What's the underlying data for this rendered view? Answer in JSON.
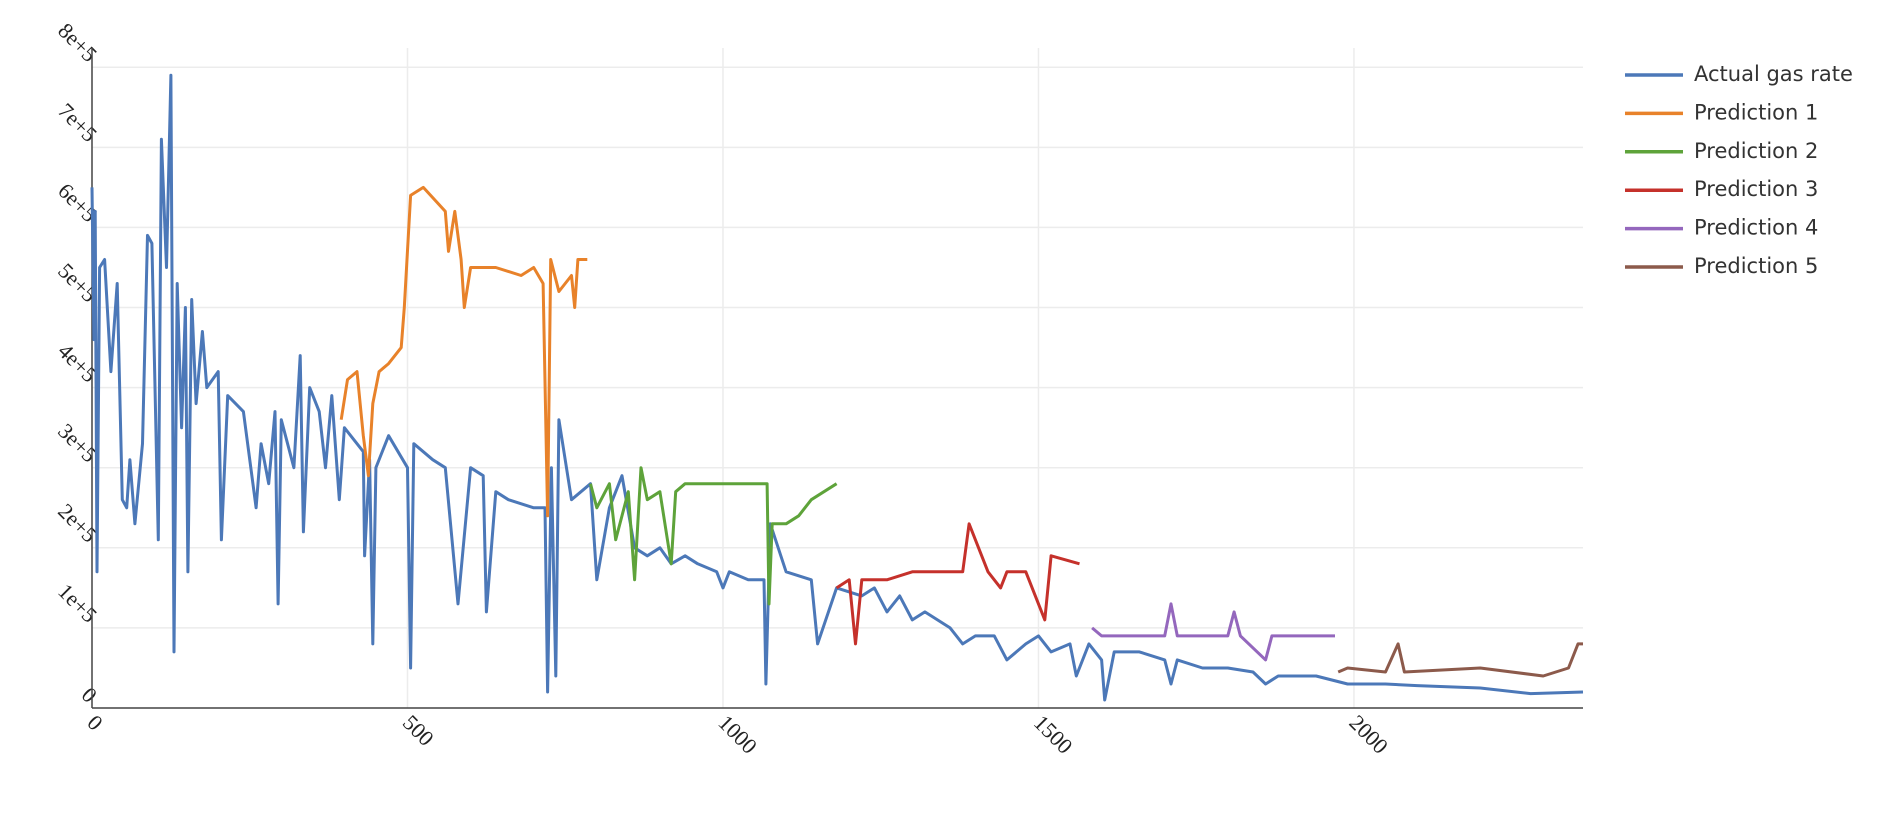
{
  "chart_data": {
    "type": "line",
    "xlim": [
      0,
      2363
    ],
    "ylim": [
      0,
      824000
    ],
    "xticks": [
      0,
      500,
      1000,
      1500,
      2000
    ],
    "yticks": [
      0,
      {
        "value": 100000,
        "label": "1e+5"
      },
      {
        "value": 200000,
        "label": "2e+5"
      },
      {
        "value": 300000,
        "label": "3e+5"
      },
      {
        "value": 400000,
        "label": "4e+5"
      },
      {
        "value": 500000,
        "label": "5e+5"
      },
      {
        "value": 600000,
        "label": "6e+5"
      },
      {
        "value": 700000,
        "label": "7e+5"
      },
      {
        "value": 800000,
        "label": "8e+5"
      }
    ],
    "grid": true,
    "legend": "right",
    "series": [
      {
        "name": "Actual gas rate",
        "color": "#4c78b8",
        "x": [
          0,
          3,
          5,
          8,
          12,
          20,
          30,
          40,
          48,
          55,
          60,
          68,
          80,
          88,
          95,
          105,
          110,
          118,
          125,
          130,
          135,
          142,
          148,
          152,
          158,
          165,
          175,
          182,
          200,
          205,
          215,
          240,
          260,
          268,
          280,
          290,
          295,
          300,
          320,
          330,
          335,
          345,
          360,
          370,
          380,
          392,
          400,
          430,
          432,
          440,
          445,
          450,
          470,
          500,
          505,
          510,
          540,
          560,
          580,
          600,
          620,
          625,
          640,
          660,
          700,
          718,
          722,
          728,
          735,
          740,
          760,
          790,
          800,
          820,
          840,
          860,
          880,
          900,
          918,
          940,
          960,
          990,
          1000,
          1010,
          1040,
          1065,
          1068,
          1075,
          1100,
          1140,
          1150,
          1180,
          1220,
          1240,
          1260,
          1280,
          1300,
          1320,
          1360,
          1380,
          1400,
          1430,
          1450,
          1480,
          1500,
          1520,
          1550,
          1560,
          1580,
          1600,
          1605,
          1620,
          1660,
          1700,
          1710,
          1720,
          1760,
          1800,
          1840,
          1860,
          1880,
          1940,
          1990,
          2050,
          2100,
          2200,
          2280,
          2363
        ],
        "values": [
          650000,
          460000,
          620000,
          170000,
          550000,
          560000,
          420000,
          530000,
          260000,
          250000,
          310000,
          230000,
          330000,
          590000,
          580000,
          210000,
          710000,
          550000,
          790000,
          70000,
          530000,
          350000,
          500000,
          170000,
          510000,
          380000,
          470000,
          400000,
          420000,
          210000,
          390000,
          370000,
          250000,
          330000,
          280000,
          370000,
          130000,
          360000,
          300000,
          440000,
          220000,
          400000,
          370000,
          300000,
          390000,
          260000,
          350000,
          320000,
          190000,
          310000,
          80000,
          300000,
          340000,
          300000,
          50000,
          330000,
          310000,
          300000,
          130000,
          300000,
          290000,
          120000,
          270000,
          260000,
          250000,
          250000,
          20000,
          300000,
          40000,
          360000,
          260000,
          280000,
          160000,
          250000,
          290000,
          200000,
          190000,
          200000,
          180000,
          190000,
          180000,
          170000,
          150000,
          170000,
          160000,
          160000,
          30000,
          230000,
          170000,
          160000,
          80000,
          150000,
          140000,
          150000,
          120000,
          140000,
          110000,
          120000,
          100000,
          80000,
          90000,
          90000,
          60000,
          80000,
          90000,
          70000,
          80000,
          40000,
          80000,
          60000,
          10000,
          70000,
          70000,
          60000,
          30000,
          60000,
          50000,
          50000,
          45000,
          30000,
          40000,
          40000,
          30000,
          30000,
          28000,
          25000,
          18000,
          20000
        ]
      },
      {
        "name": "Prediction 1",
        "color": "#e8822a",
        "x": [
          395,
          405,
          420,
          430,
          438,
          445,
          455,
          470,
          490,
          495,
          505,
          525,
          560,
          565,
          575,
          585,
          590,
          600,
          640,
          680,
          700,
          715,
          722,
          727,
          740,
          760,
          765,
          770,
          785
        ],
        "values": [
          360000,
          410000,
          420000,
          340000,
          290000,
          380000,
          420000,
          430000,
          450000,
          500000,
          640000,
          650000,
          620000,
          570000,
          620000,
          560000,
          500000,
          550000,
          550000,
          540000,
          550000,
          530000,
          240000,
          560000,
          520000,
          540000,
          500000,
          560000,
          560000
        ]
      },
      {
        "name": "Prediction 2",
        "color": "#5ea33a",
        "x": [
          790,
          800,
          820,
          830,
          850,
          860,
          870,
          880,
          900,
          918,
          925,
          940,
          1000,
          1070,
          1073,
          1078,
          1100,
          1120,
          1140,
          1180
        ],
        "values": [
          280000,
          250000,
          280000,
          210000,
          270000,
          160000,
          300000,
          260000,
          270000,
          180000,
          270000,
          280000,
          280000,
          280000,
          130000,
          230000,
          230000,
          240000,
          260000,
          280000
        ]
      },
      {
        "name": "Prediction 3",
        "color": "#c5312b",
        "x": [
          1180,
          1200,
          1210,
          1220,
          1260,
          1300,
          1350,
          1380,
          1390,
          1420,
          1440,
          1450,
          1480,
          1510,
          1520,
          1565
        ],
        "values": [
          150000,
          160000,
          80000,
          160000,
          160000,
          170000,
          170000,
          170000,
          230000,
          170000,
          150000,
          170000,
          170000,
          110000,
          190000,
          180000
        ]
      },
      {
        "name": "Prediction 4",
        "color": "#9467bd",
        "x": [
          1585,
          1600,
          1650,
          1700,
          1710,
          1720,
          1800,
          1810,
          1820,
          1860,
          1870,
          1900,
          1970
        ],
        "values": [
          100000,
          90000,
          90000,
          90000,
          130000,
          90000,
          90000,
          120000,
          90000,
          60000,
          90000,
          90000,
          90000
        ]
      },
      {
        "name": "Prediction 5",
        "color": "#8c5a4b",
        "x": [
          1975,
          1990,
          2050,
          2070,
          2080,
          2200,
          2300,
          2340,
          2355,
          2363
        ],
        "values": [
          45000,
          50000,
          45000,
          80000,
          45000,
          50000,
          40000,
          50000,
          80000,
          80000
        ]
      }
    ]
  }
}
